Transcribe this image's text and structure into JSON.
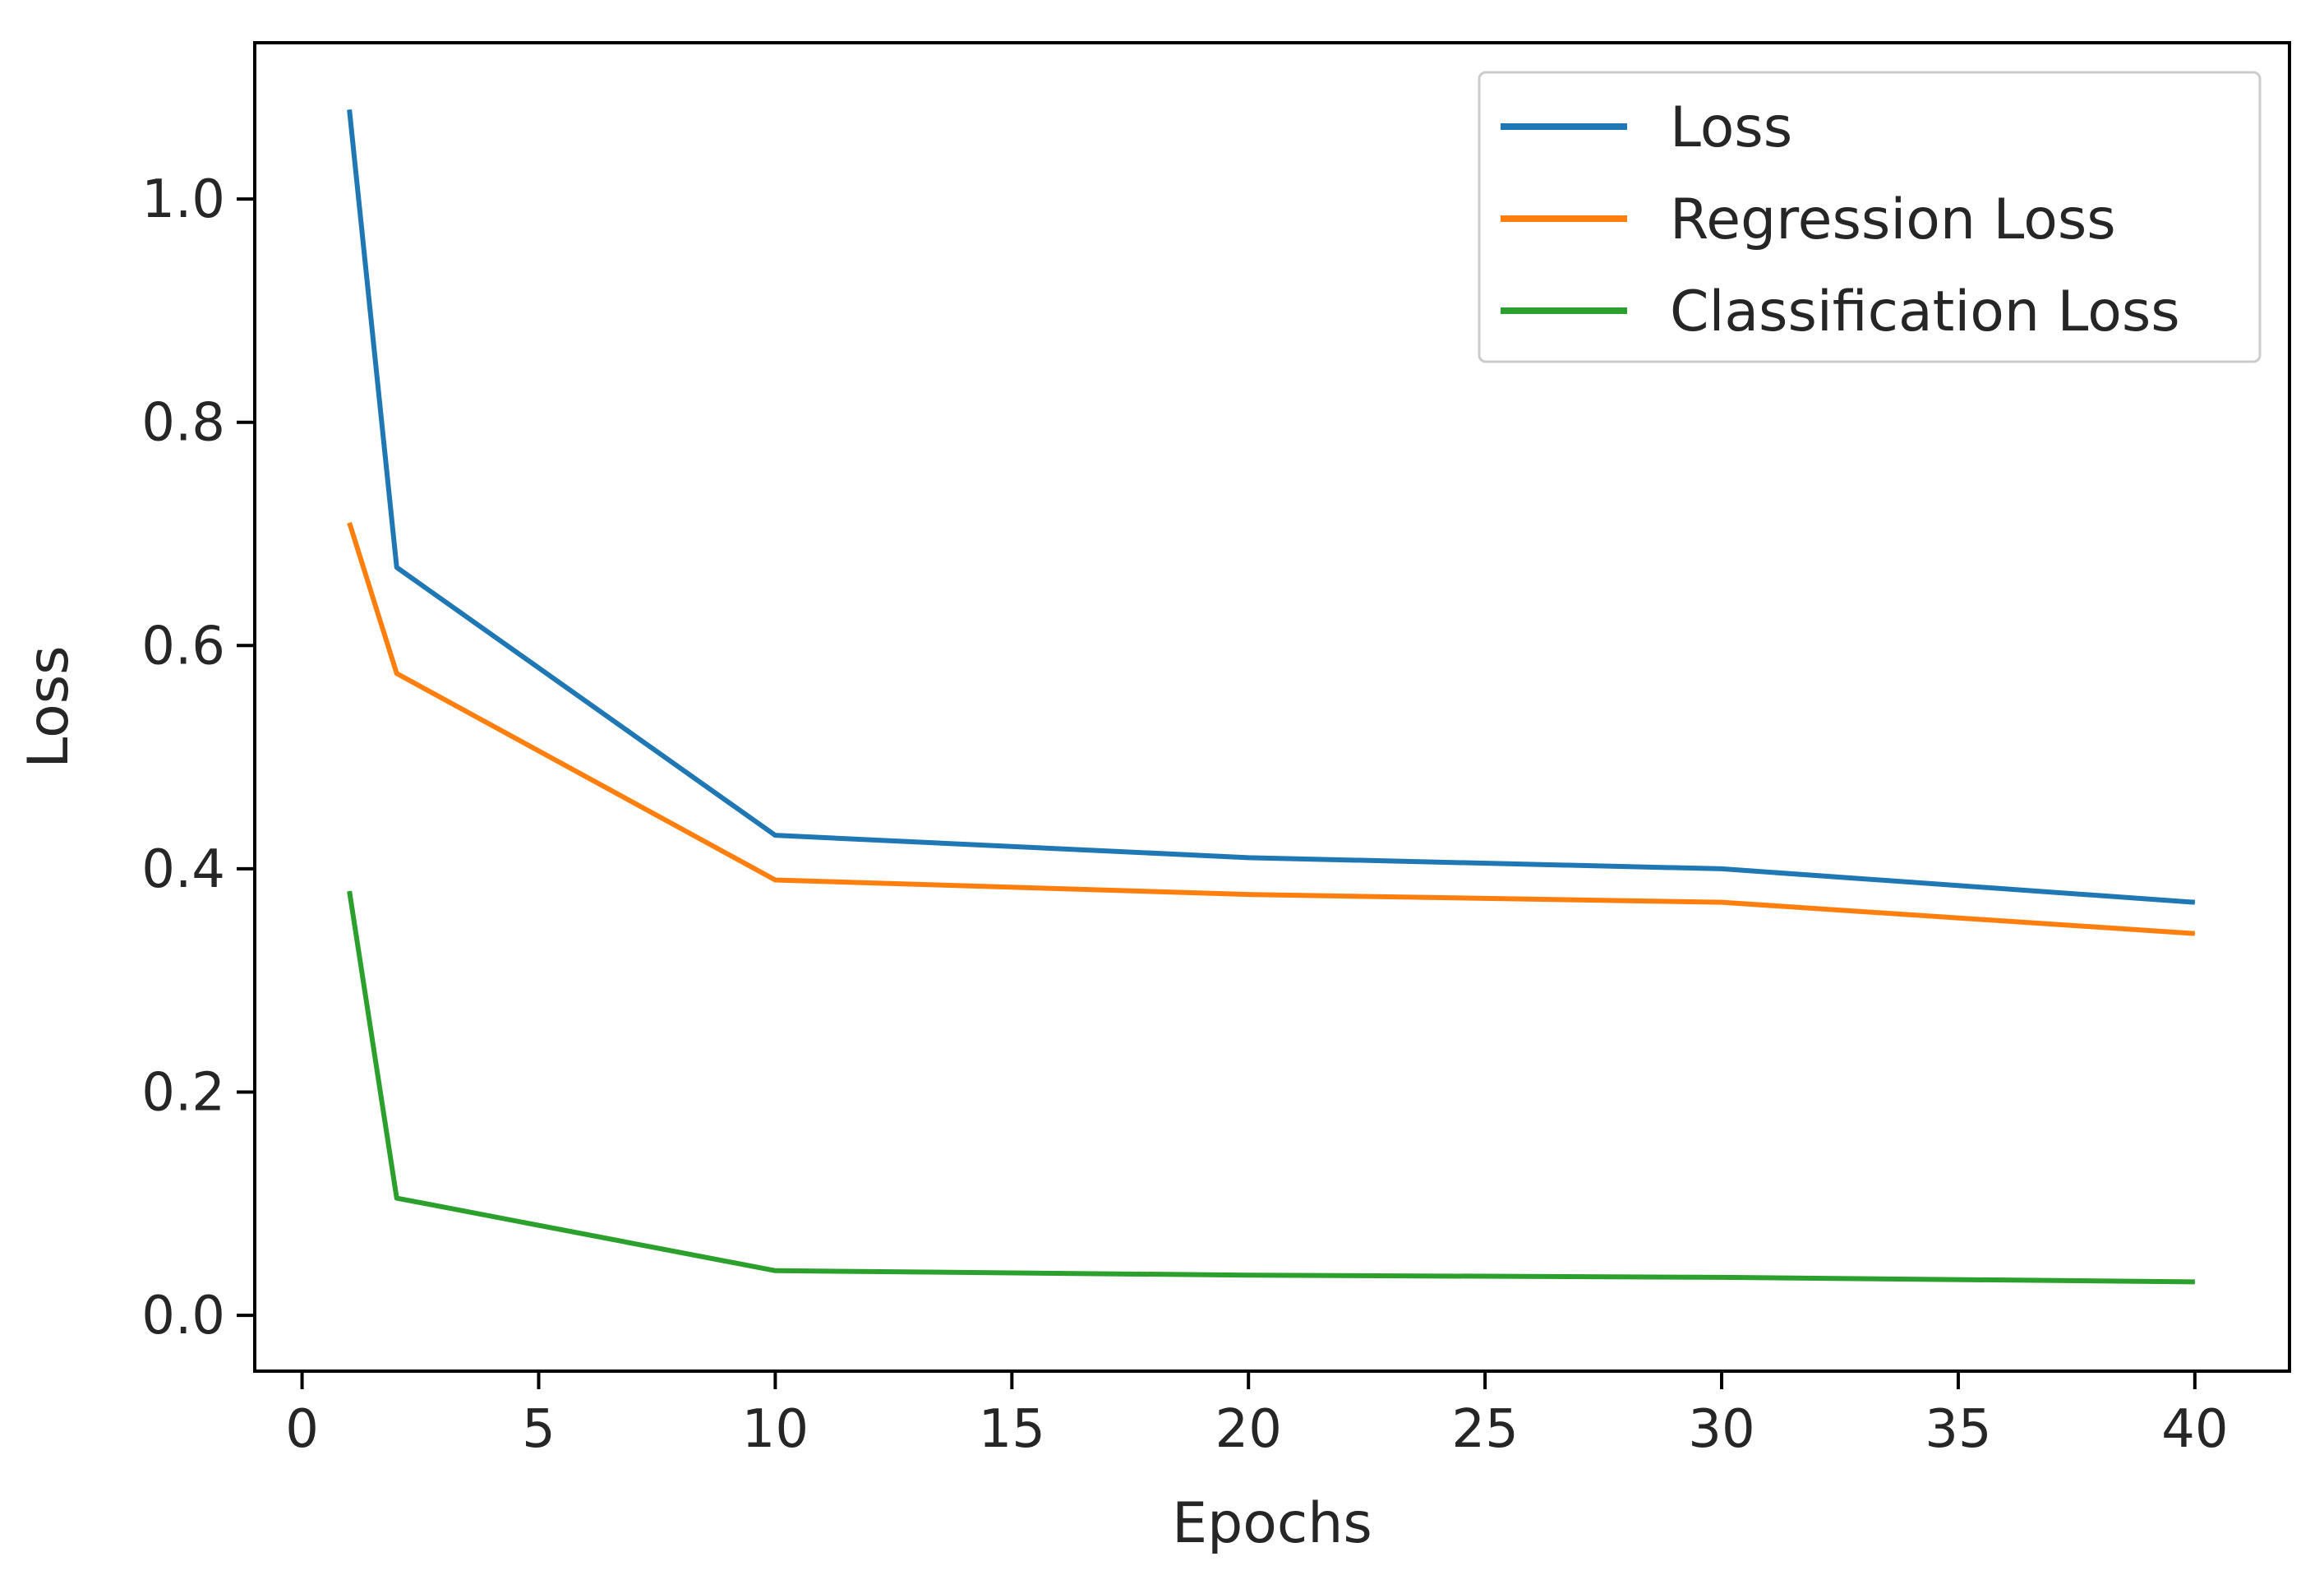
{
  "chart_data": {
    "type": "line",
    "title": "",
    "xlabel": "Epochs",
    "ylabel": "Loss",
    "xlim": [
      -1,
      42
    ],
    "ylim": [
      -0.05,
      1.14
    ],
    "xticks": [
      0,
      5,
      10,
      15,
      20,
      25,
      30,
      35,
      40
    ],
    "xtick_labels": [
      "0",
      "5",
      "10",
      "15",
      "20",
      "25",
      "30",
      "35",
      "40"
    ],
    "yticks": [
      0.0,
      0.2,
      0.4,
      0.6,
      0.8,
      1.0
    ],
    "ytick_labels": [
      "0.0",
      "0.2",
      "0.4",
      "0.6",
      "0.8",
      "1.0"
    ],
    "grid": false,
    "legend_position": "top-right",
    "x": [
      1,
      2,
      10,
      20,
      30,
      40
    ],
    "series": [
      {
        "name": "Loss",
        "color": "#1f77b4",
        "values": [
          1.08,
          0.67,
          0.43,
          0.41,
          0.4,
          0.37
        ]
      },
      {
        "name": "Regression Loss",
        "color": "#ff7f0e",
        "values": [
          0.71,
          0.575,
          0.39,
          0.377,
          0.37,
          0.342
        ]
      },
      {
        "name": "Classification Loss",
        "color": "#2ca02c",
        "values": [
          0.38,
          0.105,
          0.04,
          0.036,
          0.034,
          0.03
        ]
      }
    ]
  }
}
